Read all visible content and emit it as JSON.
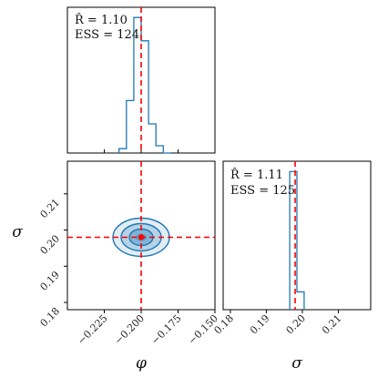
{
  "chart_data": {
    "type": "corner",
    "params": [
      "φ",
      "σ"
    ],
    "truth": {
      "phi": -0.2,
      "sigma": 0.198
    },
    "colors": {
      "series": "#1f77b4",
      "truth": "#ff0000"
    },
    "phi_marginal": {
      "stats": [
        "R̂ = 1.10",
        "ESS = 124"
      ],
      "xlim": [
        -0.25,
        -0.15
      ],
      "bin_edges": [
        -0.215,
        -0.21,
        -0.205,
        -0.2,
        -0.195,
        -0.19,
        -0.185,
        -0.18
      ],
      "counts": [
        0.03,
        0.36,
        0.93,
        0.77,
        0.2,
        0.05,
        0.0
      ]
    },
    "sigma_marginal": {
      "stats": [
        "R̂ = 1.11",
        "ESS = 125"
      ],
      "xlim": [
        0.178,
        0.219
      ],
      "bin_edges": [
        0.1965,
        0.1985,
        0.2005
      ],
      "counts": [
        0.93,
        0.12
      ]
    },
    "joint": {
      "xlim": [
        -0.25,
        -0.15
      ],
      "ylim": [
        0.178,
        0.219
      ],
      "center": {
        "phi": -0.2,
        "sigma": 0.198
      },
      "contour_levels": [
        "1σ",
        "1.5σ",
        "2σ"
      ],
      "xticks": [
        "−0.225",
        "−0.200",
        "−0.175",
        "−0.150"
      ],
      "xtick_values": [
        -0.225,
        -0.2,
        -0.175,
        -0.15
      ],
      "yticks": [
        "0.18",
        "0.19",
        "0.20",
        "0.21"
      ],
      "ytick_values": [
        0.18,
        0.19,
        0.2,
        0.21
      ],
      "xlabel": "φ",
      "ylabel": "σ"
    },
    "sigma_axis": {
      "ticks": [
        "0.18",
        "0.19",
        "0.20",
        "0.21"
      ],
      "tick_values": [
        0.18,
        0.19,
        0.2,
        0.21
      ],
      "xlabel": "σ"
    }
  }
}
